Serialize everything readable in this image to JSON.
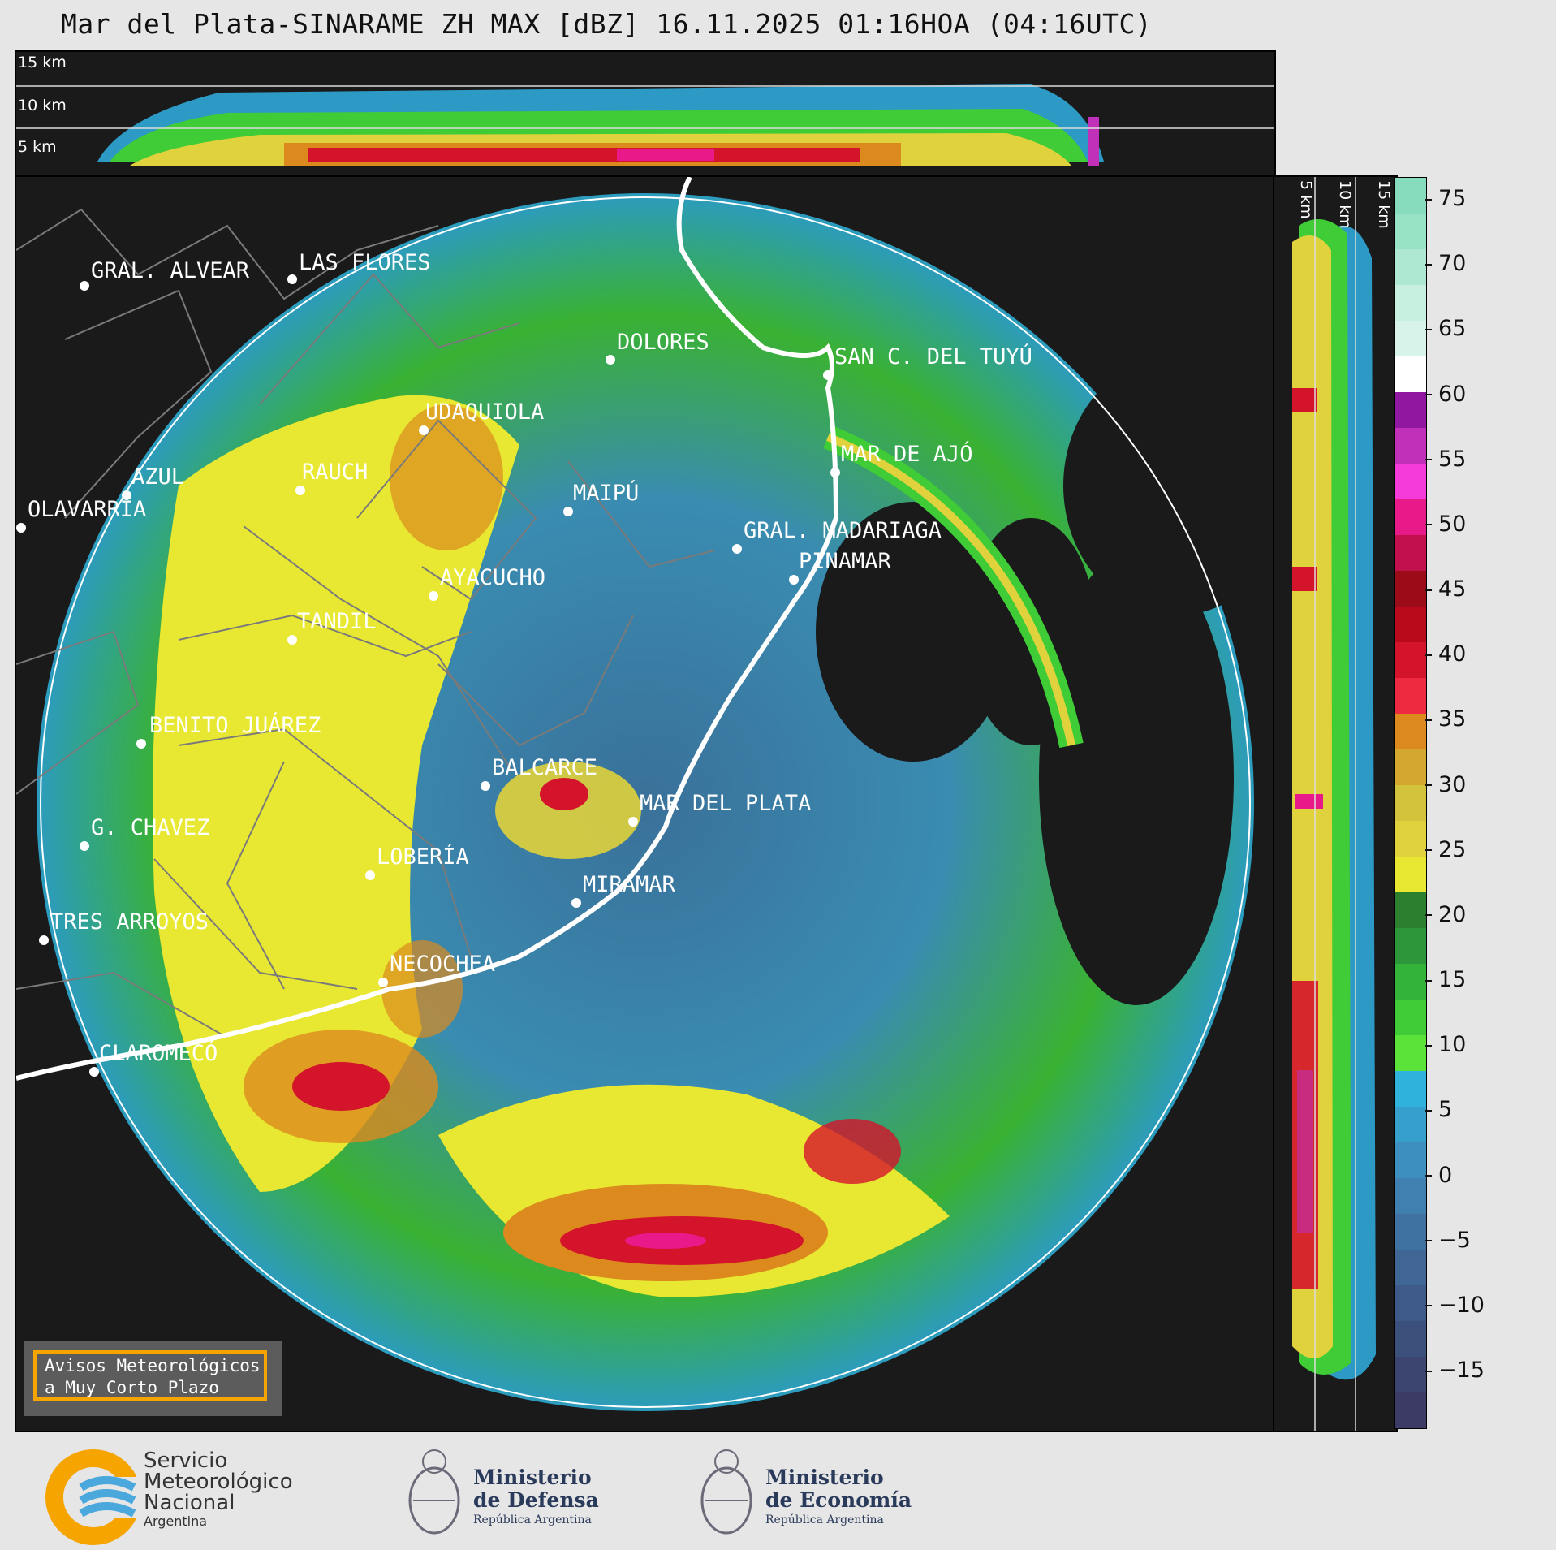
{
  "title": "Mar del Plata-SINARAME ZH MAX [dBZ] 16.11.2025 01:16HOA (04:16UTC)",
  "height_labels": [
    "15 km",
    "10 km",
    "5 km"
  ],
  "cities": [
    {
      "name": "GRAL. ALVEAR"
    },
    {
      "name": "LAS FLORES"
    },
    {
      "name": "DOLORES"
    },
    {
      "name": "SAN C. DEL TUYÚ"
    },
    {
      "name": "UDAQUIOLA"
    },
    {
      "name": "RAUCH"
    },
    {
      "name": "AZUL"
    },
    {
      "name": "OLAVARRÍA"
    },
    {
      "name": "MAR DE AJÓ"
    },
    {
      "name": "MAIPÚ"
    },
    {
      "name": "GRAL. MADARIAGA"
    },
    {
      "name": "PINAMAR"
    },
    {
      "name": "AYACUCHO"
    },
    {
      "name": "TANDIL"
    },
    {
      "name": "BENITO JUÁREZ"
    },
    {
      "name": "BALCARCE"
    },
    {
      "name": "MAR DEL PLATA"
    },
    {
      "name": "G. CHAVEZ"
    },
    {
      "name": "LOBERÍA"
    },
    {
      "name": "MIRAMAR"
    },
    {
      "name": "TRES ARROYOS"
    },
    {
      "name": "NECOCHEA"
    },
    {
      "name": "CLAROMECÓ"
    }
  ],
  "colorbar": {
    "unit": "dBZ",
    "ticks": [
      "75",
      "70",
      "65",
      "60",
      "55",
      "50",
      "45",
      "40",
      "35",
      "30",
      "25",
      "20",
      "15",
      "10",
      "5",
      "0",
      "−5",
      "−10",
      "−15"
    ],
    "colors": [
      "#3b3b66",
      "#3b4570",
      "#3c507c",
      "#3d5a88",
      "#3f6694",
      "#3f72a1",
      "#3f80b0",
      "#3c8fbe",
      "#379fcc",
      "#2fb2dc",
      "#5ce33a",
      "#3fcc36",
      "#34b33a",
      "#2d963a",
      "#2b7f2e",
      "#e8e832",
      "#e0d23c",
      "#d2c23c",
      "#d4a82e",
      "#dc8a1e",
      "#ee2a40",
      "#d4142a",
      "#b80a1a",
      "#9c0b18",
      "#c2104e",
      "#e81a8a",
      "#f43ad8",
      "#c030b8",
      "#9018a0",
      "#ffffff",
      "#d8f3ea",
      "#c8f0e0",
      "#aee8d2",
      "#98e2c6",
      "#86dcbc"
    ]
  },
  "badge": {
    "line1": "Avisos Meteorológicos",
    "line2": "a Muy Corto Plazo"
  },
  "logos": {
    "smn": {
      "line1": "Servicio",
      "line2": "Meteorológico",
      "line3": "Nacional",
      "line4": "Argentina"
    },
    "defensa": {
      "line1": "Ministerio",
      "line2": "de Defensa",
      "line3": "República Argentina"
    },
    "economia": {
      "line1": "Ministerio",
      "line2": "de Economía",
      "line3": "República Argentina"
    }
  }
}
